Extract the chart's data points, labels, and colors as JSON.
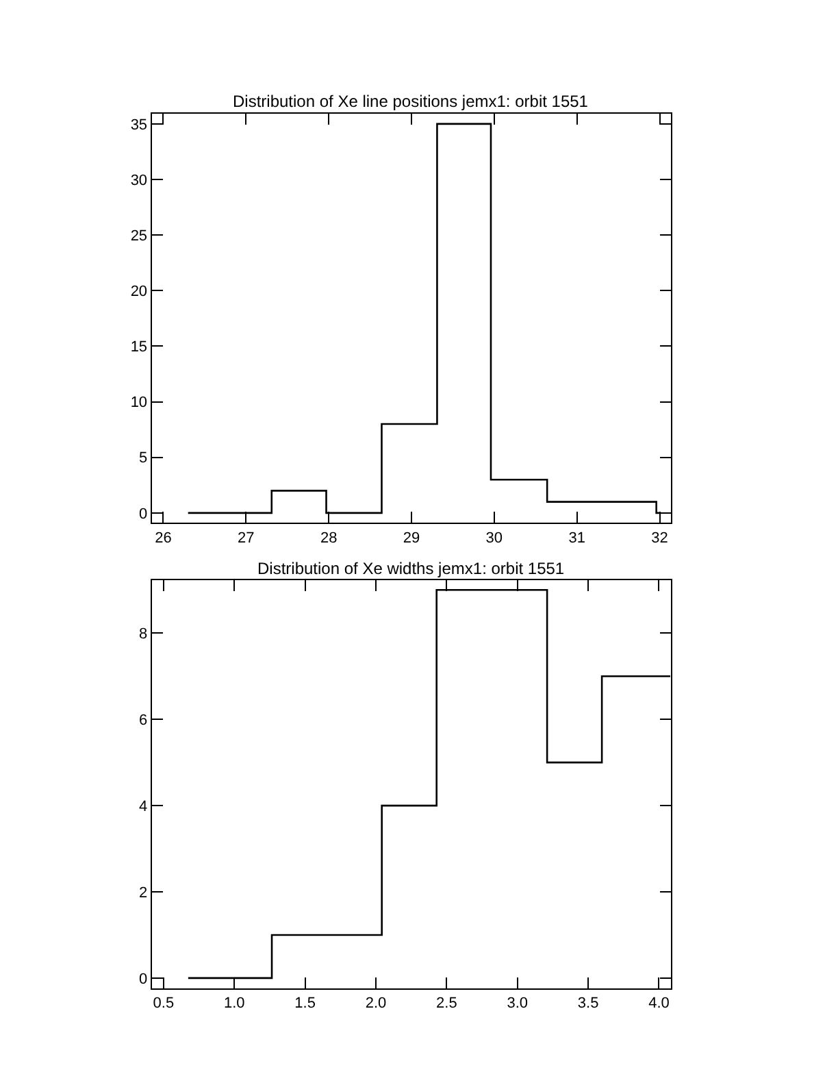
{
  "chart_data": [
    {
      "type": "step",
      "title": "Distribution of Xe line positions jemx1: orbit 1551",
      "x": [
        26.3,
        27.31,
        27.97,
        28.64,
        29.31,
        29.96,
        30.64,
        31.96,
        32.0
      ],
      "series": [
        {
          "color": "#000000",
          "values": [
            0,
            2,
            0,
            8,
            35,
            3,
            1,
            0,
            0
          ]
        }
      ],
      "xlim": [
        25.86,
        32.14
      ],
      "xticks": [
        26,
        27,
        28,
        29,
        30,
        31,
        32
      ],
      "ylim": [
        -0.9,
        35.9
      ],
      "yticks": [
        0,
        5,
        10,
        15,
        20,
        25,
        30,
        35
      ],
      "marker": "none",
      "line_style": "solid"
    },
    {
      "type": "step",
      "title": "Distribution of Xe widths jemx1: orbit 1551",
      "x": [
        0.674,
        1.265,
        2.042,
        2.429,
        3.21,
        3.597,
        4.08
      ],
      "series": [
        {
          "color": "#000000",
          "values": [
            0,
            1,
            4,
            9,
            5,
            7,
            7
          ]
        }
      ],
      "xlim": [
        0.416,
        4.087
      ],
      "xticks": [
        {
          "value": 0.5,
          "label": "0.5"
        },
        {
          "value": 1,
          "label": "1.0"
        },
        {
          "value": 1.5,
          "label": "1.5"
        },
        {
          "value": 2,
          "label": "2.0"
        },
        {
          "value": 2.5,
          "label": "2.5"
        },
        {
          "value": 3,
          "label": "3.0"
        },
        {
          "value": 3.5,
          "label": "3.5"
        },
        {
          "value": 4,
          "label": "4.0"
        }
      ],
      "ylim": [
        -0.24,
        9.22
      ],
      "yticks": [
        0,
        2,
        4,
        6,
        8
      ],
      "marker": "none",
      "line_style": "solid"
    }
  ]
}
